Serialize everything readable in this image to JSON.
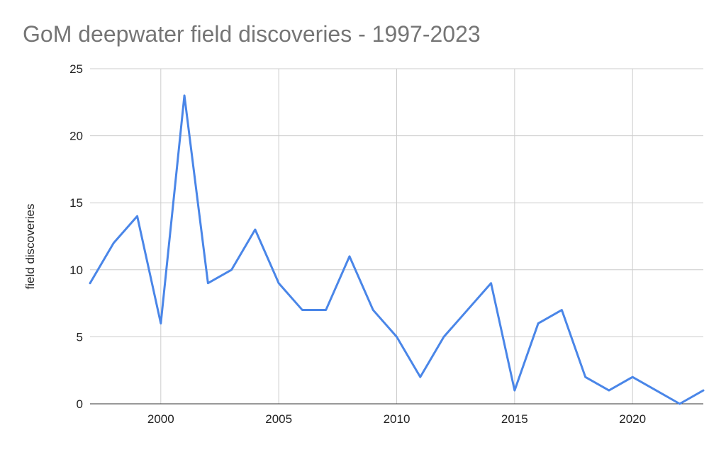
{
  "chart_data": {
    "type": "line",
    "title": "GoM deepwater field discoveries - 1997-2023",
    "xlabel": "",
    "ylabel": "field discoveries",
    "x": [
      1997,
      1998,
      1999,
      2000,
      2001,
      2002,
      2003,
      2004,
      2005,
      2006,
      2007,
      2008,
      2009,
      2010,
      2011,
      2012,
      2013,
      2014,
      2015,
      2016,
      2017,
      2018,
      2019,
      2020,
      2021,
      2022,
      2023
    ],
    "series": [
      {
        "values": [
          9,
          12,
          14,
          6,
          23,
          9,
          10,
          13,
          9,
          7,
          7,
          11,
          7,
          5,
          2,
          5,
          7,
          9,
          1,
          6,
          7,
          2,
          1,
          2,
          1,
          0,
          1
        ],
        "color": "#4a86e8"
      }
    ],
    "xlim": [
      1997,
      2023
    ],
    "ylim": [
      0,
      25
    ],
    "xticks": [
      2000,
      2005,
      2010,
      2015,
      2020
    ],
    "yticks": [
      0,
      5,
      10,
      15,
      20,
      25
    ],
    "grid": true,
    "legend": "none"
  }
}
